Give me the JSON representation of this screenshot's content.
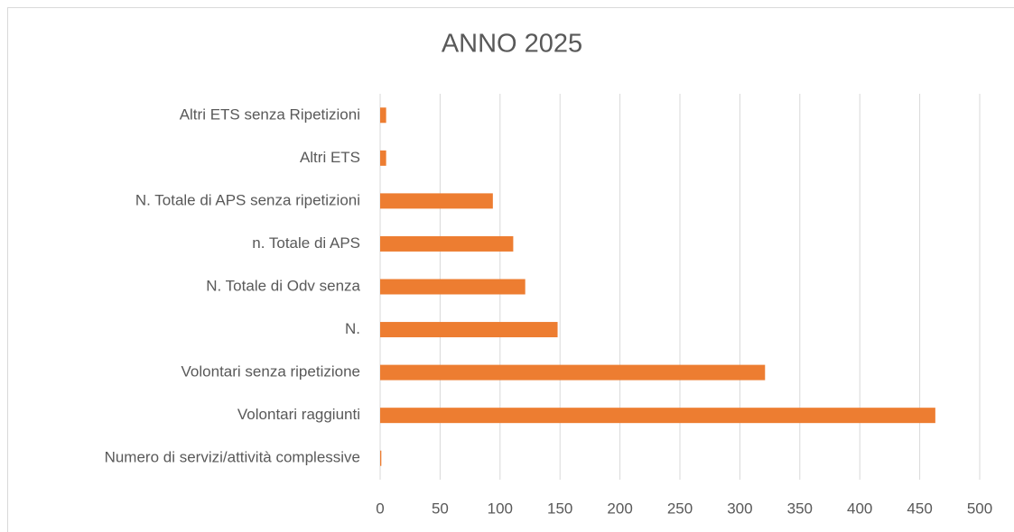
{
  "chart_data": {
    "type": "bar",
    "orientation": "horizontal",
    "title": "ANNO 2025",
    "categories": [
      "Altri ETS senza Ripetizioni",
      "Altri ETS",
      "N. Totale di APS senza ripetizioni",
      "n. Totale di APS",
      "N. Totale di Odv senza",
      "N.",
      "Volontari senza ripetizione",
      "Volontari raggiunti",
      "Numero di servizi/attività complessive"
    ],
    "values": [
      5,
      5,
      94,
      111,
      121,
      148,
      321,
      463,
      1
    ],
    "color": "#ed7d31",
    "xlim": [
      0,
      500
    ],
    "xticks": [
      0,
      50,
      100,
      150,
      200,
      250,
      300,
      350,
      400,
      450,
      500
    ],
    "grid": true
  }
}
